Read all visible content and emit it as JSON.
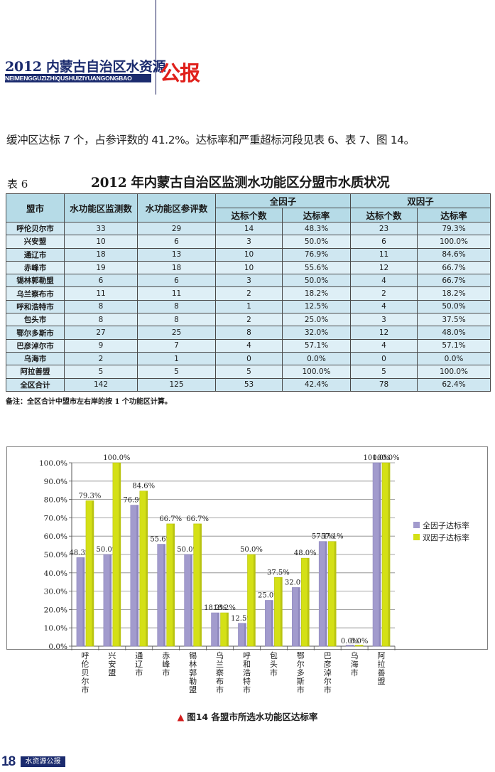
{
  "header": {
    "title_cn": "2012 内蒙古自治区水资源",
    "title_en": "NEIMENGGUZIZHIQUSHUIZIYUANGONGBAO",
    "title_big": "公报"
  },
  "paragraph": "缓冲区达标 7 个，占参评数的 41.2%。达标率和严重超标河段见表 6、表 7、图 14。",
  "table": {
    "label": "表 6",
    "title": "2012 年内蒙古自治区监测水功能区分盟市水质状况",
    "headers": {
      "city": "盟市",
      "monitored": "水功能区监测数",
      "evaluated": "水功能区参评数",
      "all_factor": "全因子",
      "dual_factor": "双因子",
      "count": "达标个数",
      "rate": "达标率"
    },
    "rows": [
      [
        "呼伦贝尔市",
        "33",
        "29",
        "14",
        "48.3%",
        "23",
        "79.3%"
      ],
      [
        "兴安盟",
        "10",
        "6",
        "3",
        "50.0%",
        "6",
        "100.0%"
      ],
      [
        "通辽市",
        "18",
        "13",
        "10",
        "76.9%",
        "11",
        "84.6%"
      ],
      [
        "赤峰市",
        "19",
        "18",
        "10",
        "55.6%",
        "12",
        "66.7%"
      ],
      [
        "锡林郭勒盟",
        "6",
        "6",
        "3",
        "50.0%",
        "4",
        "66.7%"
      ],
      [
        "乌兰察布市",
        "11",
        "11",
        "2",
        "18.2%",
        "2",
        "18.2%"
      ],
      [
        "呼和浩特市",
        "8",
        "8",
        "1",
        "12.5%",
        "4",
        "50.0%"
      ],
      [
        "包头市",
        "8",
        "8",
        "2",
        "25.0%",
        "3",
        "37.5%"
      ],
      [
        "鄂尔多斯市",
        "27",
        "25",
        "8",
        "32.0%",
        "12",
        "48.0%"
      ],
      [
        "巴彦淖尔市",
        "9",
        "7",
        "4",
        "57.1%",
        "4",
        "57.1%"
      ],
      [
        "乌海市",
        "2",
        "1",
        "0",
        "0.0%",
        "0",
        "0.0%"
      ],
      [
        "阿拉善盟",
        "5",
        "5",
        "5",
        "100.0%",
        "5",
        "100.0%"
      ],
      [
        "全区合计",
        "142",
        "125",
        "53",
        "42.4%",
        "78",
        "62.4%"
      ]
    ],
    "note": "备注：全区合计中盟市左右岸的按 1 个功能区计算。"
  },
  "chart_data": {
    "type": "bar",
    "categories": [
      "呼伦贝尔市",
      "兴安盟",
      "通辽市",
      "赤峰市",
      "锡林郭勒盟",
      "乌兰察布市",
      "呼和浩特市",
      "包头市",
      "鄂尔多斯市",
      "巴彦淖尔市",
      "乌海市",
      "阿拉善盟"
    ],
    "series": [
      {
        "name": "全因子达标率",
        "values": [
          48.3,
          50.0,
          76.9,
          55.6,
          50.0,
          18.2,
          12.5,
          25.0,
          32.0,
          57.1,
          0.0,
          100.0
        ],
        "labels": [
          "48.3%",
          "50.0%",
          "76.9%",
          "55.6%",
          "50.0%",
          "18.2%",
          "12.5%",
          "25.0%",
          "32.0%",
          "57.1%",
          "0.0%",
          "100.0%"
        ],
        "color": "#a29bcd"
      },
      {
        "name": "双因子达标率",
        "values": [
          79.3,
          100.0,
          84.6,
          66.7,
          66.7,
          18.2,
          50.0,
          37.5,
          48.0,
          57.1,
          0.0,
          100.0
        ],
        "labels": [
          "79.3%",
          "100.0%",
          "84.6%",
          "66.7%",
          "66.7%",
          "18.2%",
          "50.0%",
          "37.5%",
          "48.0%",
          "57.1%",
          "0.0%",
          "100.0%"
        ],
        "color": "#d4e016"
      }
    ],
    "yticks": [
      "0.0%",
      "10.0%",
      "20.0%",
      "30.0%",
      "40.0%",
      "50.0%",
      "60.0%",
      "70.0%",
      "80.0%",
      "90.0%",
      "100.0%"
    ],
    "ylim": [
      0,
      100
    ],
    "grid": true,
    "legend": "right",
    "caption": "图14  各盟市所选水功能区达标率"
  },
  "footer": {
    "page_number": "18",
    "publication": "水资源公报"
  }
}
